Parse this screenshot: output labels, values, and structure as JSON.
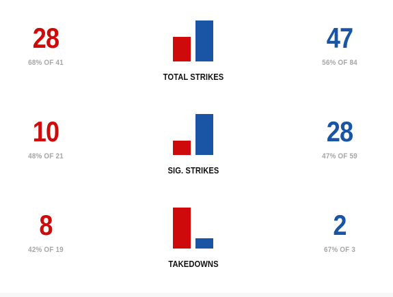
{
  "colors": {
    "red": "#cf0a0a",
    "blue": "#1a54a5",
    "muted": "#a6a6a6",
    "label": "#111111"
  },
  "stats": [
    {
      "label": "TOTAL STRIKES",
      "red": {
        "value": "28",
        "detail": "68% OF 41",
        "landed": 28
      },
      "blue": {
        "value": "47",
        "detail": "56% OF 84",
        "landed": 47
      }
    },
    {
      "label": "SIG. STRIKES",
      "red": {
        "value": "10",
        "detail": "48% OF 21",
        "landed": 10
      },
      "blue": {
        "value": "28",
        "detail": "47% OF 59",
        "landed": 28
      }
    },
    {
      "label": "TAKEDOWNS",
      "red": {
        "value": "8",
        "detail": "42% OF 19",
        "landed": 8
      },
      "blue": {
        "value": "2",
        "detail": "67% OF 3",
        "landed": 2
      }
    }
  ]
}
